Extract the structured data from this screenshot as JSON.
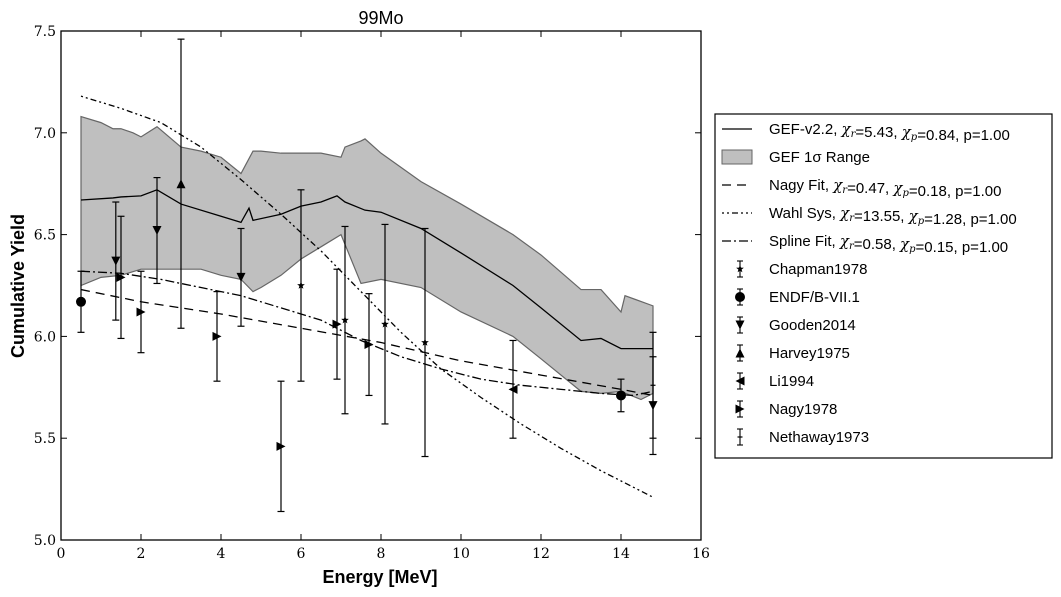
{
  "chart_data": {
    "type": "line",
    "title": "99Mo",
    "xlabel": "Energy [MeV]",
    "ylabel": "Cumulative Yield",
    "xlim": [
      0,
      16
    ],
    "ylim": [
      5.0,
      7.5
    ],
    "xticks": [
      0,
      2,
      4,
      6,
      8,
      10,
      12,
      14,
      16
    ],
    "yticks": [
      5.0,
      5.5,
      6.0,
      6.5,
      7.0,
      7.5
    ],
    "xtick_labels": [
      "0",
      "2",
      "4",
      "6",
      "8",
      "10",
      "12",
      "14",
      "16"
    ],
    "ytick_labels": [
      "5.0",
      "5.5",
      "6.0",
      "6.5",
      "7.0",
      "7.5"
    ],
    "grid": false,
    "legend_position": "right, outside plot",
    "band": {
      "name": "GEF 1σ Range",
      "fill": "#bfbfbf",
      "upper": [
        [
          0.5,
          7.08
        ],
        [
          1.0,
          7.05
        ],
        [
          1.3,
          7.02
        ],
        [
          1.5,
          7.02
        ],
        [
          1.8,
          7.0
        ],
        [
          2.0,
          6.98
        ],
        [
          2.4,
          7.03
        ],
        [
          3.0,
          6.93
        ],
        [
          3.5,
          6.91
        ],
        [
          4.0,
          6.88
        ],
        [
          4.5,
          6.8
        ],
        [
          4.8,
          6.91
        ],
        [
          5.0,
          6.91
        ],
        [
          5.5,
          6.9
        ],
        [
          6.0,
          6.9
        ],
        [
          6.5,
          6.9
        ],
        [
          7.0,
          6.88
        ],
        [
          7.1,
          6.93
        ],
        [
          7.5,
          6.96
        ],
        [
          7.6,
          6.97
        ],
        [
          8.0,
          6.9
        ],
        [
          9.0,
          6.76
        ],
        [
          10.0,
          6.65
        ],
        [
          11.3,
          6.5
        ],
        [
          12.0,
          6.4
        ],
        [
          13.0,
          6.23
        ],
        [
          13.5,
          6.23
        ],
        [
          14.0,
          6.12
        ],
        [
          14.1,
          6.2
        ],
        [
          14.8,
          6.15
        ]
      ],
      "lower": [
        [
          0.5,
          6.25
        ],
        [
          1.0,
          6.29
        ],
        [
          1.5,
          6.3
        ],
        [
          2.0,
          6.33
        ],
        [
          2.5,
          6.33
        ],
        [
          3.0,
          6.33
        ],
        [
          3.5,
          6.33
        ],
        [
          4.0,
          6.3
        ],
        [
          4.5,
          6.28
        ],
        [
          4.8,
          6.22
        ],
        [
          5.0,
          6.24
        ],
        [
          5.5,
          6.3
        ],
        [
          6.0,
          6.38
        ],
        [
          6.5,
          6.44
        ],
        [
          7.0,
          6.5
        ],
        [
          7.5,
          6.26
        ],
        [
          8.0,
          6.28
        ],
        [
          9.0,
          6.24
        ],
        [
          10.0,
          6.12
        ],
        [
          11.3,
          6.0
        ],
        [
          12.0,
          5.89
        ],
        [
          13.0,
          5.73
        ],
        [
          13.5,
          5.72
        ],
        [
          14.0,
          5.73
        ],
        [
          14.5,
          5.69
        ],
        [
          14.8,
          5.72
        ]
      ]
    },
    "series": [
      {
        "name": "GEF-v2.2",
        "legend_stats": ", χ_r=5.43, χ_p=0.84, p=1.00",
        "style": "solid",
        "points": [
          [
            0.5,
            6.67
          ],
          [
            1.3,
            6.68
          ],
          [
            1.5,
            6.685
          ],
          [
            2.0,
            6.69
          ],
          [
            2.4,
            6.72
          ],
          [
            3.0,
            6.65
          ],
          [
            4.0,
            6.59
          ],
          [
            4.5,
            6.56
          ],
          [
            4.7,
            6.63
          ],
          [
            4.8,
            6.57
          ],
          [
            5.5,
            6.6
          ],
          [
            6.0,
            6.64
          ],
          [
            6.5,
            6.66
          ],
          [
            6.9,
            6.69
          ],
          [
            7.1,
            6.66
          ],
          [
            7.6,
            6.62
          ],
          [
            8.0,
            6.61
          ],
          [
            9.0,
            6.53
          ],
          [
            10.0,
            6.41
          ],
          [
            11.3,
            6.25
          ],
          [
            12.0,
            6.14
          ],
          [
            13.0,
            5.98
          ],
          [
            13.5,
            5.99
          ],
          [
            14.0,
            5.94
          ],
          [
            14.8,
            5.94
          ]
        ]
      },
      {
        "name": "Nagy Fit",
        "legend_stats": ", χ_r=0.47, χ_p=0.18, p=1.00",
        "style": "dashed",
        "points": [
          [
            0.5,
            6.23
          ],
          [
            2.0,
            6.17
          ],
          [
            4.0,
            6.11
          ],
          [
            6.0,
            6.04
          ],
          [
            8.0,
            5.97
          ],
          [
            10.0,
            5.88
          ],
          [
            12.0,
            5.81
          ],
          [
            14.0,
            5.74
          ],
          [
            14.8,
            5.71
          ]
        ]
      },
      {
        "name": "Wahl Sys",
        "legend_stats": ", χ_r=13.55, χ_p=1.28, p=1.00",
        "style": "dash-dot-dot",
        "points": [
          [
            0.5,
            7.18
          ],
          [
            1.5,
            7.12
          ],
          [
            2.5,
            7.05
          ],
          [
            3.5,
            6.93
          ],
          [
            4.5,
            6.77
          ],
          [
            5.5,
            6.6
          ],
          [
            6.5,
            6.42
          ],
          [
            7.5,
            6.22
          ],
          [
            8.5,
            6.02
          ],
          [
            9.5,
            5.84
          ],
          [
            10.5,
            5.7
          ],
          [
            11.5,
            5.57
          ],
          [
            12.5,
            5.45
          ],
          [
            13.5,
            5.34
          ],
          [
            14.8,
            5.21
          ]
        ]
      },
      {
        "name": "Spline Fit",
        "legend_stats": ", χ_r=0.58, χ_p=0.15, p=1.00",
        "style": "dash-dot",
        "points": [
          [
            0.5,
            6.32
          ],
          [
            1.5,
            6.31
          ],
          [
            2.5,
            6.28
          ],
          [
            3.5,
            6.24
          ],
          [
            4.5,
            6.2
          ],
          [
            5.5,
            6.14
          ],
          [
            6.5,
            6.08
          ],
          [
            7.5,
            5.98
          ],
          [
            8.5,
            5.9
          ],
          [
            9.5,
            5.84
          ],
          [
            10.5,
            5.79
          ],
          [
            11.5,
            5.76
          ],
          [
            12.5,
            5.74
          ],
          [
            13.5,
            5.72
          ],
          [
            14.3,
            5.71
          ],
          [
            14.8,
            5.73
          ]
        ]
      }
    ],
    "datasets": [
      {
        "name": "Chapman1978",
        "marker": "star",
        "points": [
          [
            6.0,
            6.25,
            0.47
          ],
          [
            7.1,
            6.08,
            0.46
          ],
          [
            8.1,
            6.06,
            0.49
          ],
          [
            9.1,
            5.97,
            0.56
          ]
        ]
      },
      {
        "name": "ENDF/B-VII.1",
        "marker": "circle",
        "points": [
          [
            0.5,
            6.17,
            0.15
          ],
          [
            14.0,
            5.71,
            0.08
          ]
        ]
      },
      {
        "name": "Gooden2014",
        "marker": "triangle-down",
        "points": [
          [
            1.37,
            6.37,
            0.29
          ],
          [
            2.4,
            6.52,
            0.26
          ],
          [
            4.5,
            6.29,
            0.24
          ],
          [
            14.8,
            5.66,
            0.24
          ]
        ]
      },
      {
        "name": "Harvey1975",
        "marker": "triangle-up",
        "points": [
          [
            3.0,
            6.75,
            0.71
          ]
        ]
      },
      {
        "name": "Li1994",
        "marker": "triangle-left",
        "points": [
          [
            11.3,
            5.74,
            0.24
          ]
        ]
      },
      {
        "name": "Nagy1978",
        "marker": "triangle-right",
        "points": [
          [
            1.5,
            6.29,
            0.3
          ],
          [
            2.0,
            6.12,
            0.2
          ],
          [
            3.9,
            6.0,
            0.22
          ],
          [
            5.5,
            5.46,
            0.32
          ],
          [
            6.9,
            6.06,
            0.27
          ],
          [
            7.7,
            5.96,
            0.25
          ]
        ]
      },
      {
        "name": "Nethaway1973",
        "marker": "tick",
        "points": [
          [
            14.8,
            5.76,
            0.26
          ]
        ]
      }
    ]
  }
}
